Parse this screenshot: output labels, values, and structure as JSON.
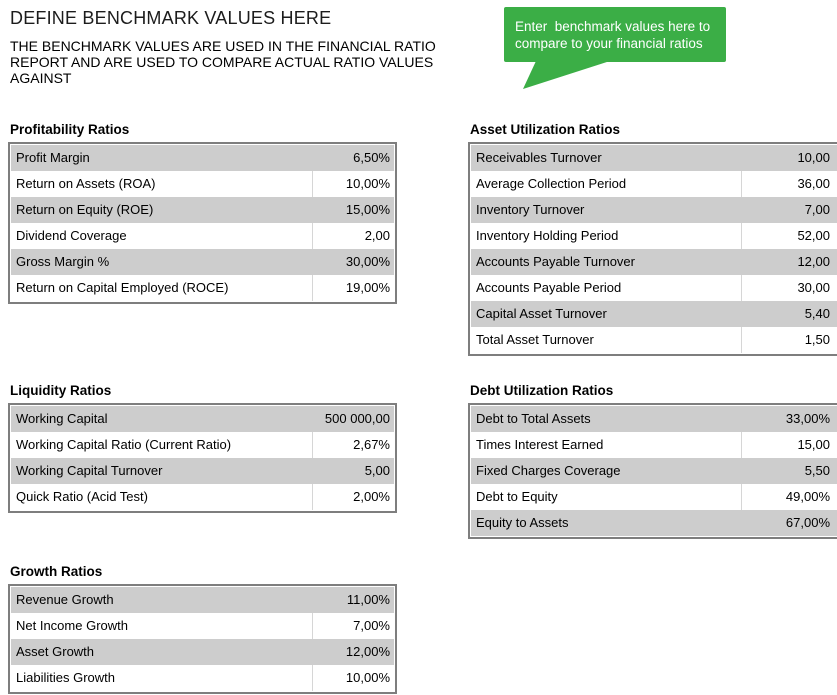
{
  "header": {
    "title": "DEFINE BENCHMARK VALUES HERE",
    "subtitle": "THE BENCHMARK VALUES ARE USED IN THE FINANCIAL RATIO REPORT AND ARE USED TO COMPARE ACTUAL RATIO VALUES AGAINST"
  },
  "callout": {
    "text": "Enter  benchmark values here to\ncompare to your financial ratios",
    "bg_color": "#3bae46",
    "text_color": "#ffffff"
  },
  "colors": {
    "row_alt_bg": "#cdcdcd",
    "row_bg": "#ffffff",
    "table_border": "#7e7e7e",
    "column_divider": "#d6d6d6"
  },
  "sections": [
    {
      "title": "Profitability Ratios",
      "rows": [
        {
          "label": "Profit Margin",
          "value": "6,50%"
        },
        {
          "label": "Return on Assets (ROA)",
          "value": "10,00%"
        },
        {
          "label": "Return on Equity (ROE)",
          "value": "15,00%"
        },
        {
          "label": "Dividend Coverage",
          "value": "2,00"
        },
        {
          "label": "Gross Margin %",
          "value": "30,00%"
        },
        {
          "label": "Return on Capital Employed (ROCE)",
          "value": "19,00%"
        }
      ]
    },
    {
      "title": "Asset Utilization Ratios",
      "rows": [
        {
          "label": "Receivables Turnover",
          "value": "10,00"
        },
        {
          "label": "Average Collection Period",
          "value": "36,00"
        },
        {
          "label": "Inventory Turnover",
          "value": "7,00"
        },
        {
          "label": "Inventory Holding Period",
          "value": "52,00"
        },
        {
          "label": "Accounts Payable Turnover",
          "value": "12,00"
        },
        {
          "label": "Accounts Payable Period",
          "value": "30,00"
        },
        {
          "label": "Capital Asset Turnover",
          "value": "5,40"
        },
        {
          "label": "Total Asset Turnover",
          "value": "1,50"
        }
      ]
    },
    {
      "title": "Liquidity Ratios",
      "rows": [
        {
          "label": "Working Capital",
          "value": "500 000,00"
        },
        {
          "label": "Working Capital Ratio (Current Ratio)",
          "value": "2,67%"
        },
        {
          "label": "Working Capital Turnover",
          "value": "5,00"
        },
        {
          "label": "Quick Ratio (Acid Test)",
          "value": "2,00%"
        }
      ]
    },
    {
      "title": "Debt Utilization Ratios",
      "rows": [
        {
          "label": "Debt to Total Assets",
          "value": "33,00%"
        },
        {
          "label": "Times Interest Earned",
          "value": "15,00"
        },
        {
          "label": "Fixed Charges Coverage",
          "value": "5,50"
        },
        {
          "label": "Debt to Equity",
          "value": "49,00%"
        },
        {
          "label": "Equity to Assets",
          "value": "67,00%"
        }
      ]
    },
    {
      "title": "Growth Ratios",
      "rows": [
        {
          "label": "Revenue Growth",
          "value": "11,00%"
        },
        {
          "label": "Net Income Growth",
          "value": "7,00%"
        },
        {
          "label": "Asset Growth",
          "value": "12,00%"
        },
        {
          "label": "Liabilities Growth",
          "value": "10,00%"
        }
      ]
    }
  ]
}
